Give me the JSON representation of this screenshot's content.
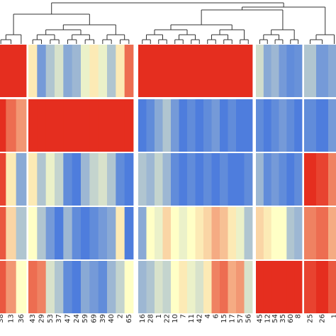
{
  "chart_data": {
    "type": "heatmap",
    "title": "",
    "xlabel": "",
    "ylabel": "",
    "color_scale": {
      "low": "#3a6fdf",
      "mid": "#ffffc6",
      "high": "#e52e1f"
    },
    "value_range": [
      0,
      1
    ],
    "grid": false,
    "legend": "none",
    "column_groups": [
      {
        "columns": [
          "38",
          "13",
          "36"
        ]
      },
      {
        "columns": [
          "43",
          "29",
          "53",
          "37",
          "47",
          "24",
          "59",
          "69",
          "39",
          "40",
          "2",
          "65"
        ]
      },
      {
        "columns": [
          "16",
          "28",
          "1",
          "22",
          "10",
          "7",
          "11",
          "42",
          "4",
          "6",
          "15",
          "17",
          "57",
          "56"
        ]
      },
      {
        "columns": [
          "45",
          "12",
          "54",
          "35",
          "60",
          "8"
        ]
      },
      {
        "columns": [
          "25",
          "26",
          "1"
        ]
      }
    ],
    "row_groups": 5,
    "values": [
      [
        [
          1.0,
          1.0,
          1.0
        ],
        [
          0.55,
          0.15,
          0.3,
          0.4,
          0.2,
          0.25,
          0.45,
          0.55,
          0.45,
          0.3,
          0.55,
          0.85
        ],
        [
          1.0,
          1.0,
          1.0,
          1.0,
          1.0,
          1.0,
          1.0,
          1.0,
          1.0,
          1.0,
          1.0,
          1.0,
          1.0,
          1.0
        ],
        [
          0.38,
          0.2,
          0.25,
          0.15,
          0.1,
          0.12
        ],
        [
          0.3,
          0.15,
          0.2
        ]
      ],
      [
        [
          1.0,
          0.85,
          0.75
        ],
        [
          1.0,
          1.0,
          1.0,
          1.0,
          1.0,
          1.0,
          1.0,
          1.0,
          1.0,
          1.0,
          1.0,
          1.0
        ],
        [
          0.05,
          0.1,
          0.2,
          0.3,
          0.15,
          0.05,
          0.1,
          0.05,
          0.1,
          0.15,
          0.05,
          0.1,
          0.05,
          0.05
        ],
        [
          0.1,
          0.05,
          0.1,
          0.15,
          0.1,
          0.05
        ],
        [
          0.1,
          0.05,
          0.15
        ]
      ],
      [
        [
          0.95,
          0.55,
          0.2
        ],
        [
          0.55,
          0.3,
          0.45,
          0.35,
          0.1,
          0.05,
          0.25,
          0.35,
          0.4,
          0.3,
          0.1,
          0.05
        ],
        [
          0.3,
          0.25,
          0.35,
          0.25,
          0.1,
          0.05,
          0.1,
          0.05,
          0.1,
          0.05,
          0.1,
          0.05,
          0.05,
          0.1
        ],
        [
          0.25,
          0.1,
          0.15,
          0.1,
          0.05,
          0.1
        ],
        [
          1.0,
          0.95,
          0.8
        ]
      ],
      [
        [
          0.9,
          0.6,
          0.3
        ],
        [
          0.5,
          0.3,
          0.15,
          0.05,
          0.25,
          0.1,
          0.05,
          0.1,
          0.15,
          0.2,
          0.55,
          0.05
        ],
        [
          0.2,
          0.5,
          0.45,
          0.6,
          0.5,
          0.45,
          0.5,
          0.55,
          0.6,
          0.7,
          0.65,
          0.55,
          0.45,
          0.3
        ],
        [
          0.6,
          0.55,
          0.5,
          0.5,
          0.3,
          0.25
        ],
        [
          0.8,
          0.85,
          0.7
        ]
      ],
      [
        [
          0.9,
          0.75,
          0.5
        ],
        [
          0.85,
          0.8,
          0.4,
          0.3,
          0.1,
          0.05,
          0.2,
          0.15,
          0.1,
          0.25,
          0.35,
          0.5
        ],
        [
          0.25,
          0.3,
          0.4,
          0.35,
          0.5,
          0.55,
          0.45,
          0.4,
          0.55,
          0.8,
          0.85,
          0.7,
          0.75,
          0.4
        ],
        [
          1.0,
          1.0,
          1.0,
          1.0,
          1.0,
          1.0
        ],
        [
          0.95,
          1.0,
          0.9
        ]
      ]
    ],
    "dendrogram": true
  }
}
